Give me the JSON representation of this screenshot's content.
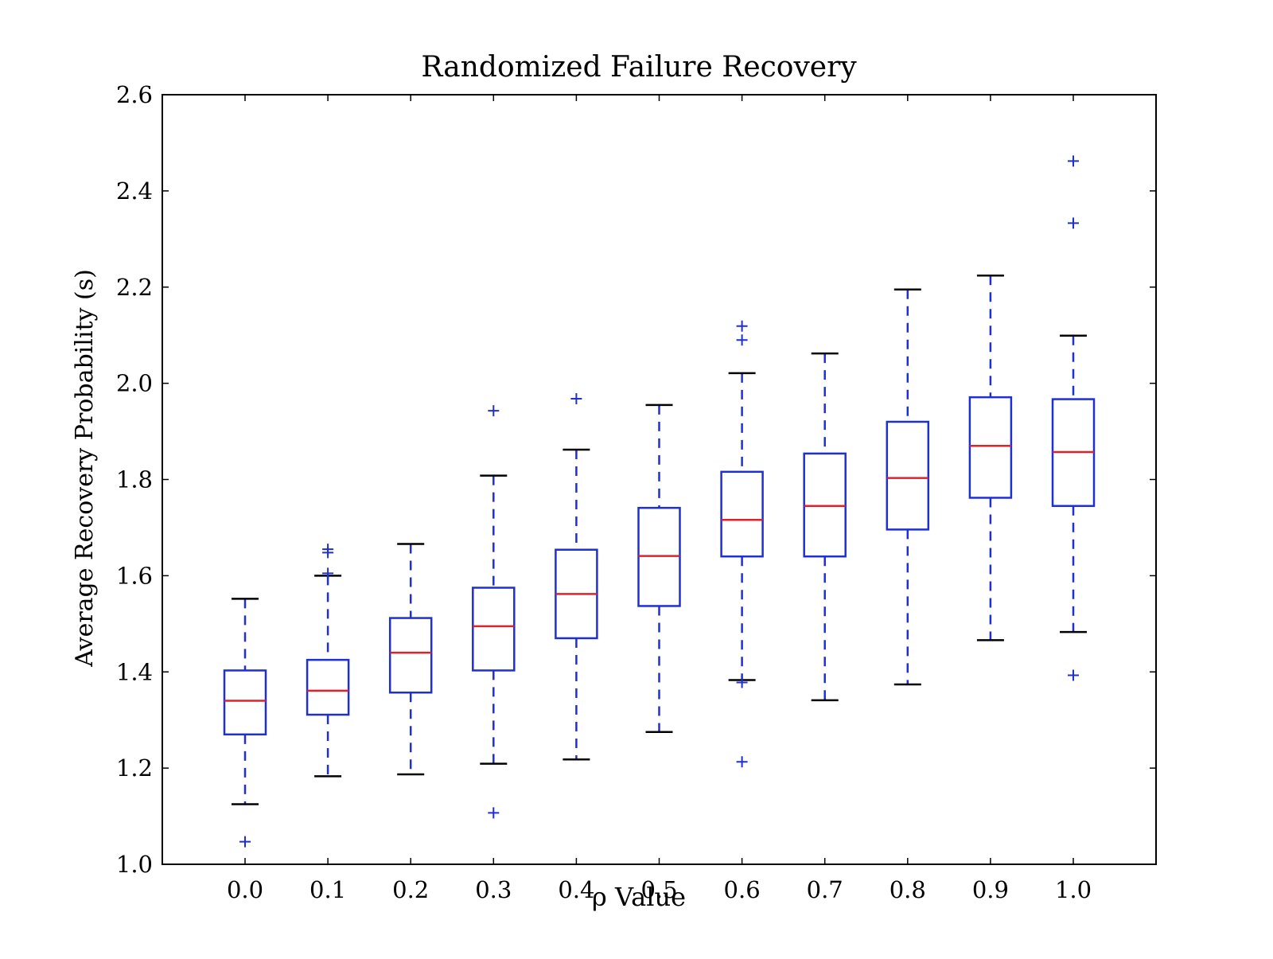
{
  "chart_data": {
    "type": "box",
    "title": "Randomized Failure Recovery",
    "xlabel": "ρ Value",
    "ylabel": "Average Recovery Probability (s)",
    "ylim": [
      1.0,
      2.6
    ],
    "yticks": [
      "1.0",
      "1.2",
      "1.4",
      "1.6",
      "1.8",
      "2.0",
      "2.2",
      "2.4",
      "2.6"
    ],
    "categories": [
      "0.0",
      "0.1",
      "0.2",
      "0.3",
      "0.4",
      "0.5",
      "0.6",
      "0.7",
      "0.8",
      "0.9",
      "1.0"
    ],
    "grid": false,
    "boxes": [
      {
        "category": "0.0",
        "whisker_low": 1.125,
        "q1": 1.27,
        "median": 1.34,
        "q3": 1.403,
        "whisker_high": 1.552,
        "outliers": [
          1.047
        ]
      },
      {
        "category": "0.1",
        "whisker_low": 1.183,
        "q1": 1.311,
        "median": 1.361,
        "q3": 1.425,
        "whisker_high": 1.6,
        "outliers": [
          1.605,
          1.648,
          1.655
        ]
      },
      {
        "category": "0.2",
        "whisker_low": 1.187,
        "q1": 1.357,
        "median": 1.44,
        "q3": 1.512,
        "whisker_high": 1.666,
        "outliers": []
      },
      {
        "category": "0.3",
        "whisker_low": 1.209,
        "q1": 1.403,
        "median": 1.495,
        "q3": 1.575,
        "whisker_high": 1.808,
        "outliers": [
          1.107,
          1.943
        ]
      },
      {
        "category": "0.4",
        "whisker_low": 1.218,
        "q1": 1.47,
        "median": 1.562,
        "q3": 1.654,
        "whisker_high": 1.862,
        "outliers": [
          1.968
        ]
      },
      {
        "category": "0.5",
        "whisker_low": 1.275,
        "q1": 1.537,
        "median": 1.641,
        "q3": 1.741,
        "whisker_high": 1.955,
        "outliers": []
      },
      {
        "category": "0.6",
        "whisker_low": 1.383,
        "q1": 1.64,
        "median": 1.716,
        "q3": 1.816,
        "whisker_high": 2.021,
        "outliers": [
          1.213,
          1.378,
          2.09,
          2.119
        ]
      },
      {
        "category": "0.7",
        "whisker_low": 1.341,
        "q1": 1.64,
        "median": 1.745,
        "q3": 1.854,
        "whisker_high": 2.062,
        "outliers": []
      },
      {
        "category": "0.8",
        "whisker_low": 1.374,
        "q1": 1.696,
        "median": 1.803,
        "q3": 1.92,
        "whisker_high": 2.195,
        "outliers": []
      },
      {
        "category": "0.9",
        "whisker_low": 1.466,
        "q1": 1.762,
        "median": 1.87,
        "q3": 1.971,
        "whisker_high": 2.224,
        "outliers": []
      },
      {
        "category": "1.0",
        "whisker_low": 1.483,
        "q1": 1.745,
        "median": 1.857,
        "q3": 1.967,
        "whisker_high": 2.099,
        "outliers": [
          1.393,
          2.333,
          2.462
        ]
      }
    ],
    "colors": {
      "box": "#1f2fd6",
      "median": "#e0202a",
      "whisker_cap": "#000000",
      "axes": "#000000"
    }
  }
}
